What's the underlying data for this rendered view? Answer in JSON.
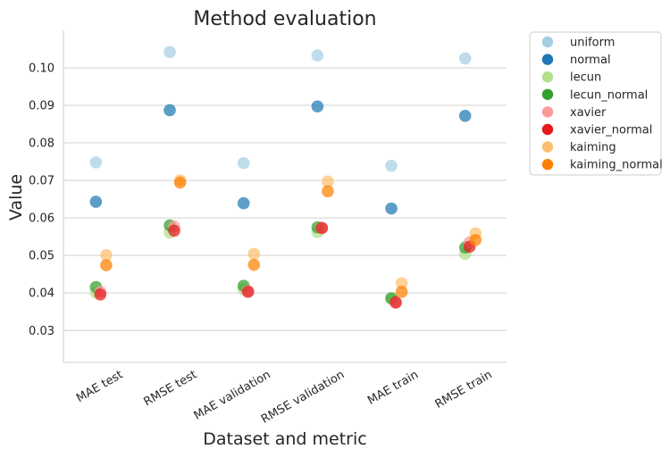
{
  "chart_data": {
    "type": "scatter",
    "title": "Method evaluation",
    "xlabel": "Dataset and metric",
    "ylabel": "Value",
    "categories": [
      "MAE test",
      "RMSE test",
      "MAE validation",
      "RMSE validation",
      "MAE train",
      "RMSE train"
    ],
    "ylim": [
      0.0215,
      0.1095
    ],
    "yticks": [
      0.03,
      0.04,
      0.05,
      0.06,
      0.07,
      0.08,
      0.09,
      0.1
    ],
    "ytick_labels": [
      "0.03",
      "0.04",
      "0.05",
      "0.06",
      "0.07",
      "0.08",
      "0.09",
      "0.10"
    ],
    "grid": "horizontal",
    "legend_position": "outside-right",
    "series": [
      {
        "name": "uniform",
        "color": "#a6cee3",
        "values": [
          0.0748,
          0.1042,
          0.0746,
          0.1033,
          0.0739,
          0.1025
        ]
      },
      {
        "name": "normal",
        "color": "#1f78b4",
        "values": [
          0.0643,
          0.0887,
          0.0639,
          0.0897,
          0.0625,
          0.0872
        ]
      },
      {
        "name": "lecun",
        "color": "#b2df8a",
        "values": [
          0.0401,
          0.0561,
          0.041,
          0.0562,
          0.0384,
          0.0504
        ]
      },
      {
        "name": "lecun_normal",
        "color": "#33a02c",
        "values": [
          0.0416,
          0.058,
          0.0419,
          0.0575,
          0.0386,
          0.0521
        ]
      },
      {
        "name": "xavier",
        "color": "#fb9a99",
        "values": [
          0.0403,
          0.0577,
          0.0405,
          0.0573,
          0.0374,
          0.0535
        ]
      },
      {
        "name": "xavier_normal",
        "color": "#e31a1c",
        "values": [
          0.0396,
          0.0566,
          0.0403,
          0.0573,
          0.0375,
          0.0523
        ]
      },
      {
        "name": "kaiming",
        "color": "#fdbf6f",
        "values": [
          0.0501,
          0.07,
          0.0504,
          0.0697,
          0.0426,
          0.0559
        ]
      },
      {
        "name": "kaiming_normal",
        "color": "#ff7f00",
        "values": [
          0.0474,
          0.0694,
          0.0475,
          0.0671,
          0.0403,
          0.0541
        ]
      }
    ],
    "jitter": [
      -0.06,
      -0.06,
      -0.06,
      -0.06,
      0.0,
      0.0,
      0.08,
      0.08
    ]
  }
}
